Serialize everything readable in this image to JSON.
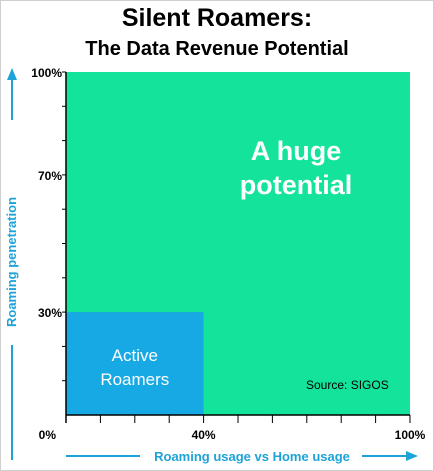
{
  "chart_data": {
    "type": "area",
    "title": "Silent Roamers:",
    "subtitle": "The Data Revenue Potential",
    "xlabel": "Roaming usage vs Home usage",
    "ylabel": "Roaming penetration",
    "xlim": [
      0,
      100
    ],
    "ylim": [
      0,
      100
    ],
    "x_ticks": [
      {
        "value": 0,
        "label": "0%"
      },
      {
        "value": 40,
        "label": "40%"
      },
      {
        "value": 100,
        "label": "100%"
      }
    ],
    "y_ticks": [
      {
        "value": 30,
        "label": "30%"
      },
      {
        "value": 70,
        "label": "70%"
      },
      {
        "value": 100,
        "label": "100%"
      }
    ],
    "regions": [
      {
        "label": "A huge potential",
        "x": [
          0,
          100
        ],
        "y": [
          0,
          100
        ],
        "color": "#14e39b"
      },
      {
        "label": "Active Roamers",
        "x": [
          0,
          40
        ],
        "y": [
          0,
          30
        ],
        "color": "#16a9e4"
      }
    ],
    "annotation": "Source: SIGOS",
    "accent_color": "#1ea3d8"
  }
}
